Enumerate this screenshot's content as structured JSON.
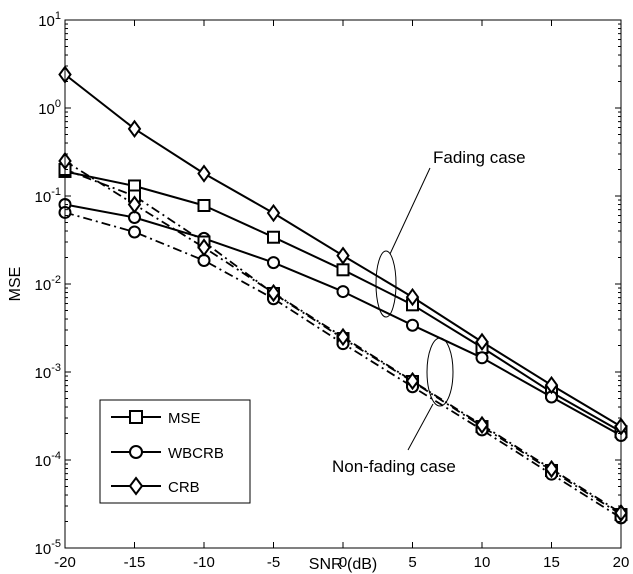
{
  "chart_data": {
    "type": "line",
    "xlabel": "SNR (dB)",
    "ylabel": "MSE",
    "xlim": [
      -20,
      20
    ],
    "ylim": [
      1e-05,
      10
    ],
    "y_scale": "log",
    "grid": false,
    "x_ticks": [
      -20,
      -15,
      -10,
      -5,
      0,
      5,
      10,
      15,
      20
    ],
    "x_tick_labels": [
      "-20",
      "-15",
      "-10",
      "-5",
      "0",
      "5",
      "10",
      "15",
      "20"
    ],
    "y_ticks": [
      {
        "value": 1e-05,
        "base": "10",
        "exp": "-5"
      },
      {
        "value": 0.0001,
        "base": "10",
        "exp": "-4"
      },
      {
        "value": 0.001,
        "base": "10",
        "exp": "-3"
      },
      {
        "value": 0.01,
        "base": "10",
        "exp": "-2"
      },
      {
        "value": 0.1,
        "base": "10",
        "exp": "-1"
      },
      {
        "value": 1,
        "base": "10",
        "exp": "0"
      },
      {
        "value": 10,
        "base": "10",
        "exp": "1"
      }
    ],
    "x": [
      -20,
      -15,
      -10,
      -5,
      0,
      5,
      10,
      15,
      20
    ],
    "legend": {
      "position": "bottom-left",
      "entries": [
        {
          "label": "MSE",
          "marker": "square"
        },
        {
          "label": "WBCRB",
          "marker": "circle"
        },
        {
          "label": "CRB",
          "marker": "diamond"
        }
      ]
    },
    "annotations": [
      {
        "text": "Fading case",
        "target": "fading"
      },
      {
        "text": "Non-fading case",
        "target": "nonfading"
      }
    ],
    "series": [
      {
        "group": "fading",
        "marker": "square",
        "style": "solid",
        "values": [
          0.19,
          0.13,
          0.078,
          0.034,
          0.0145,
          0.0058,
          0.0019,
          0.00059,
          0.00021
        ]
      },
      {
        "group": "fading",
        "marker": "circle",
        "style": "solid",
        "values": [
          0.08,
          0.057,
          0.033,
          0.0175,
          0.0082,
          0.0034,
          0.00145,
          0.00052,
          0.00019
        ]
      },
      {
        "group": "fading",
        "marker": "diamond",
        "style": "solid",
        "values": [
          2.4,
          0.58,
          0.18,
          0.064,
          0.021,
          0.0071,
          0.0022,
          0.00071,
          0.00024
        ]
      },
      {
        "group": "nonfading",
        "marker": "square",
        "style": "dashdot",
        "values": [
          0.2,
          0.1,
          0.03,
          0.0078,
          0.0024,
          0.00078,
          0.00024,
          7.6e-05,
          2.4e-05
        ]
      },
      {
        "group": "nonfading",
        "marker": "circle",
        "style": "dashdot",
        "values": [
          0.065,
          0.039,
          0.0185,
          0.0068,
          0.0021,
          0.00068,
          0.00022,
          6.9e-05,
          2.2e-05
        ]
      },
      {
        "group": "nonfading",
        "marker": "diamond",
        "style": "dashdot",
        "values": [
          0.25,
          0.08,
          0.026,
          0.0079,
          0.0025,
          0.00079,
          0.00025,
          7.9e-05,
          2.5e-05
        ]
      }
    ]
  }
}
